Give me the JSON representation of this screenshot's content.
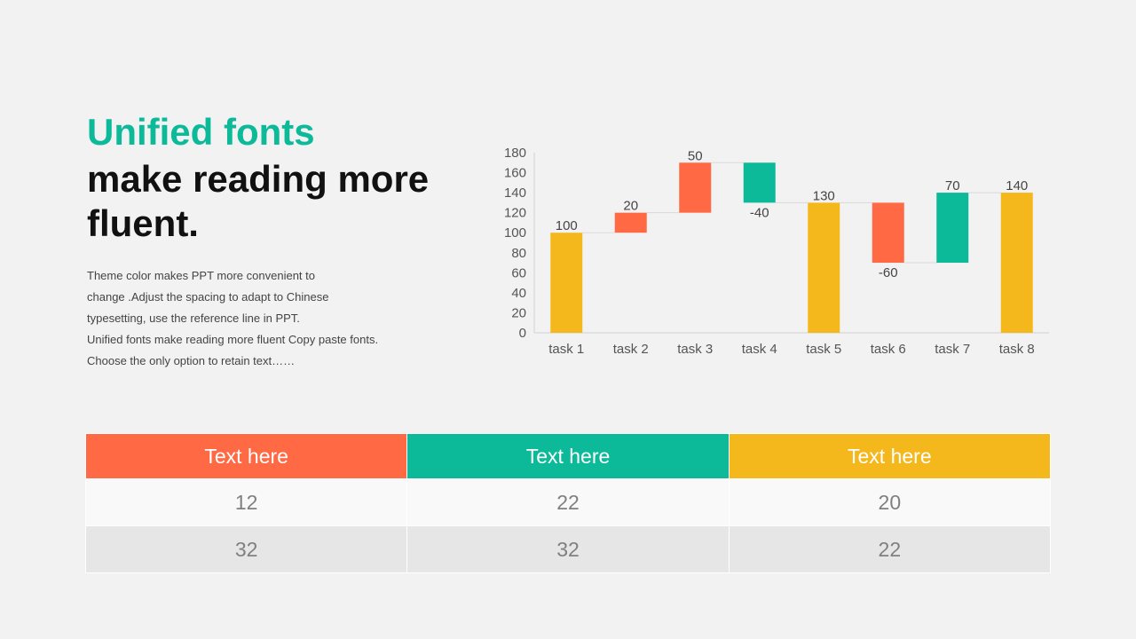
{
  "headline": {
    "accent": "Unified fonts",
    "main": "make reading more fluent."
  },
  "body_lines": [
    "Theme  color makes PPT more convenient to",
    "change .Adjust  the spacing to adapt to Chinese",
    "typesetting, use the reference line in PPT.",
    "Unified fonts make reading more fluent Copy paste fonts.",
    "Choose the only option to retain text……"
  ],
  "colors": {
    "total": "#f4b81c",
    "decrease": "#ff6a45",
    "increase": "#0cba99",
    "accent_text": "#0cba99"
  },
  "chart_data": {
    "type": "bar",
    "subtype": "waterfall",
    "categories": [
      "task 1",
      "task 2",
      "task 3",
      "task 4",
      "task 5",
      "task 6",
      "task 7",
      "task 8"
    ],
    "bars": [
      {
        "kind": "total",
        "start": 0,
        "end": 100,
        "label": "100"
      },
      {
        "kind": "decrease",
        "start": 100,
        "end": 120,
        "label": "20"
      },
      {
        "kind": "decrease",
        "start": 120,
        "end": 170,
        "label": "50"
      },
      {
        "kind": "increase",
        "start": 170,
        "end": 130,
        "label": "-40"
      },
      {
        "kind": "total",
        "start": 0,
        "end": 130,
        "label": "130"
      },
      {
        "kind": "decrease",
        "start": 130,
        "end": 70,
        "label": "-60"
      },
      {
        "kind": "increase",
        "start": 70,
        "end": 140,
        "label": "70"
      },
      {
        "kind": "total",
        "start": 0,
        "end": 140,
        "label": "140"
      }
    ],
    "yticks": [
      0,
      20,
      40,
      60,
      80,
      100,
      120,
      140,
      160,
      180
    ],
    "ylim": [
      0,
      180
    ],
    "grid": false,
    "legend": "none"
  },
  "table": {
    "headers": [
      {
        "label": "Text here",
        "color": "#ff6a45"
      },
      {
        "label": "Text here",
        "color": "#0cba99"
      },
      {
        "label": "Text here",
        "color": "#f4b81c"
      }
    ],
    "rows": [
      [
        "12",
        "22",
        "20"
      ],
      [
        "32",
        "32",
        "22"
      ]
    ]
  }
}
